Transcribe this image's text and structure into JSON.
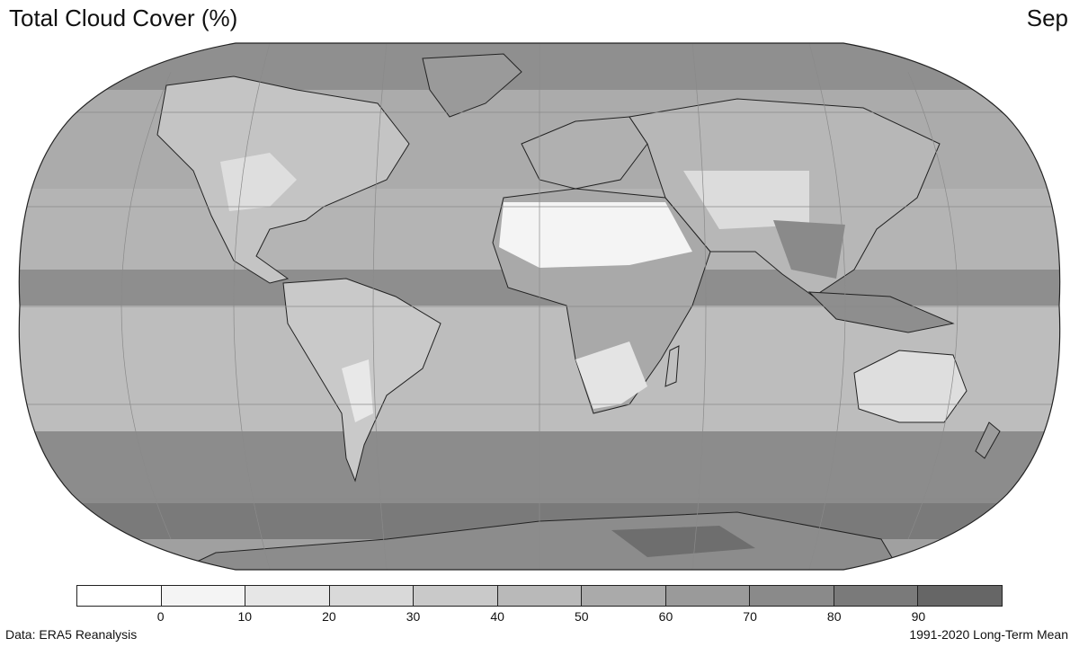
{
  "header": {
    "title": "Total Cloud Cover (%)",
    "month": "Sep"
  },
  "map": {
    "projection": "robinson",
    "variable": "total cloud cover",
    "palette": "greyscale",
    "graticule": true,
    "coastlines": true,
    "borders": true
  },
  "colorbar": {
    "colors": [
      "#ffffff",
      "#f4f4f4",
      "#e6e6e6",
      "#d9d9d9",
      "#c9c9c9",
      "#b9b9b9",
      "#aaaaaa",
      "#9a9a9a",
      "#8a8a8a",
      "#7a7a7a",
      "#666666"
    ],
    "ticks": [
      "0",
      "10",
      "20",
      "30",
      "40",
      "50",
      "60",
      "70",
      "80",
      "90"
    ]
  },
  "footer": {
    "credit": "Data: ERA5 Reanalysis",
    "period": "1991-2020 Long-Term Mean"
  }
}
